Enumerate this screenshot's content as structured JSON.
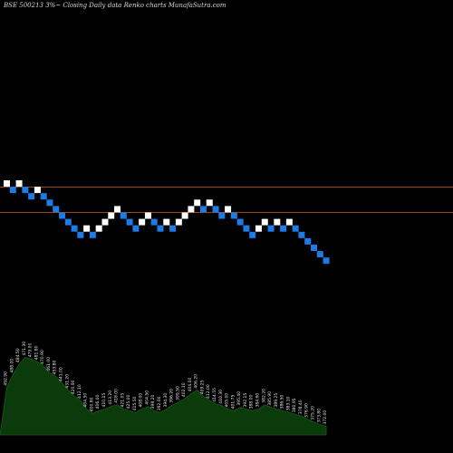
{
  "title": "BSE 500213 3%~  Closing Daily data  Renko  charts MunafaSutra.com",
  "colors": {
    "background": "#000000",
    "up_brick": "#ffffff",
    "down_brick": "#1e7be6",
    "reference_line": "#9a4a1a",
    "volume_fill": "#0b3a0b",
    "volume_stroke": "#1a5a1a",
    "label_text": "#e6e6e6"
  },
  "chart_data": {
    "type": "renko",
    "upper_reference_line": true,
    "lower_reference_line": true,
    "bricks": [
      {
        "dir": "up",
        "level": 0
      },
      {
        "dir": "down",
        "level": -1
      },
      {
        "dir": "up",
        "level": 0
      },
      {
        "dir": "down",
        "level": -1
      },
      {
        "dir": "down",
        "level": -2
      },
      {
        "dir": "up",
        "level": -1
      },
      {
        "dir": "down",
        "level": -2
      },
      {
        "dir": "down",
        "level": -3
      },
      {
        "dir": "down",
        "level": -4
      },
      {
        "dir": "down",
        "level": -5
      },
      {
        "dir": "down",
        "level": -6
      },
      {
        "dir": "down",
        "level": -7
      },
      {
        "dir": "down",
        "level": -8
      },
      {
        "dir": "up",
        "level": -7
      },
      {
        "dir": "down",
        "level": -8
      },
      {
        "dir": "up",
        "level": -7
      },
      {
        "dir": "up",
        "level": -6
      },
      {
        "dir": "up",
        "level": -5
      },
      {
        "dir": "up",
        "level": -4
      },
      {
        "dir": "down",
        "level": -5
      },
      {
        "dir": "down",
        "level": -6
      },
      {
        "dir": "down",
        "level": -7
      },
      {
        "dir": "up",
        "level": -6
      },
      {
        "dir": "up",
        "level": -5
      },
      {
        "dir": "down",
        "level": -6
      },
      {
        "dir": "down",
        "level": -7
      },
      {
        "dir": "up",
        "level": -6
      },
      {
        "dir": "down",
        "level": -7
      },
      {
        "dir": "up",
        "level": -6
      },
      {
        "dir": "up",
        "level": -5
      },
      {
        "dir": "up",
        "level": -4
      },
      {
        "dir": "up",
        "level": -3
      },
      {
        "dir": "down",
        "level": -4
      },
      {
        "dir": "up",
        "level": -3
      },
      {
        "dir": "down",
        "level": -4
      },
      {
        "dir": "down",
        "level": -5
      },
      {
        "dir": "up",
        "level": -4
      },
      {
        "dir": "down",
        "level": -5
      },
      {
        "dir": "down",
        "level": -6
      },
      {
        "dir": "down",
        "level": -7
      },
      {
        "dir": "down",
        "level": -8
      },
      {
        "dir": "up",
        "level": -7
      },
      {
        "dir": "up",
        "level": -6
      },
      {
        "dir": "down",
        "level": -7
      },
      {
        "dir": "up",
        "level": -6
      },
      {
        "dir": "down",
        "level": -7
      },
      {
        "dir": "up",
        "level": -6
      },
      {
        "dir": "down",
        "level": -7
      },
      {
        "dir": "down",
        "level": -8
      },
      {
        "dir": "down",
        "level": -9
      },
      {
        "dir": "down",
        "level": -10
      },
      {
        "dir": "down",
        "level": -11
      },
      {
        "dir": "down",
        "level": -12
      }
    ],
    "volume": [
      55,
      70,
      82,
      90,
      88,
      85,
      80,
      72,
      68,
      60,
      52,
      45,
      40,
      30,
      25,
      28,
      30,
      33,
      35,
      30,
      28,
      26,
      30,
      33,
      28,
      26,
      30,
      35,
      38,
      42,
      48,
      52,
      45,
      40,
      36,
      34,
      30,
      28,
      32,
      30,
      28,
      30,
      35,
      32,
      30,
      28,
      26,
      24,
      22,
      18,
      15,
      12,
      10
    ],
    "brick_labels": [
      "492.90",
      "488.00",
      "484.50",
      "471.30",
      "479.00",
      "481.80",
      "470.90",
      "461.00",
      "453.80",
      "441.00",
      "431.20",
      "420.90",
      "412.10",
      "404.50",
      "400.80",
      "406.00",
      "410.15",
      "413.20",
      "418.00",
      "421.05",
      "425.00",
      "415.50",
      "408.00",
      "404.50",
      "398.20",
      "392.00",
      "394.30",
      "396.20",
      "399.50",
      "402.10",
      "404.00",
      "406.20",
      "409.25",
      "412.00",
      "414.55",
      "410.30",
      "405.00",
      "401.75",
      "395.40",
      "392.15",
      "388.00",
      "384.60",
      "382.20",
      "385.90",
      "389.25",
      "386.50",
      "383.10",
      "380.95",
      "378.40",
      "376.90",
      "375.20",
      "373.80",
      "372.00"
    ]
  }
}
